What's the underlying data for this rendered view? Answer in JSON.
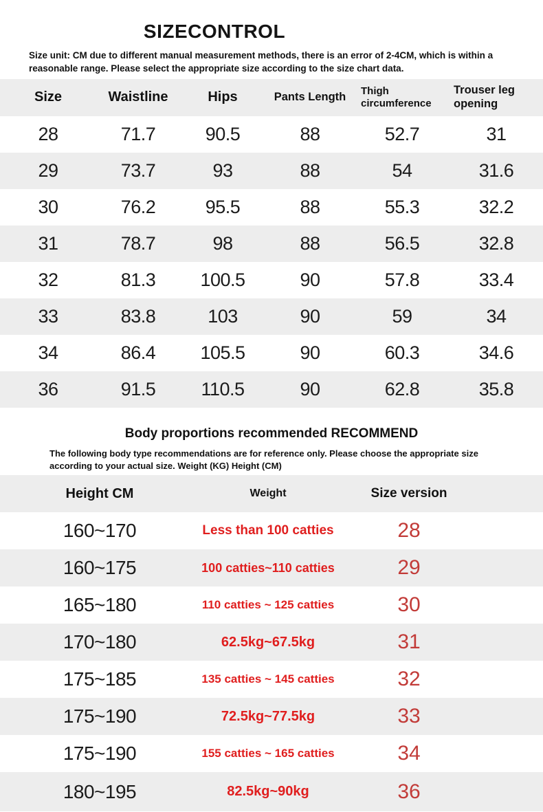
{
  "header": {
    "title": "SIZECONTROL",
    "note": "Size unit: CM due to different manual measurement methods, there is an error of 2-4CM, which is within a reasonable range. Please select the appropriate size according to the size chart data."
  },
  "size_table": {
    "columns": [
      "Size",
      "Waistline",
      "Hips",
      "Pants Length",
      "Thigh circumference",
      "Trouser leg opening"
    ],
    "rows": [
      [
        "28",
        "71.7",
        "90.5",
        "88",
        "52.7",
        "31"
      ],
      [
        "29",
        "73.7",
        "93",
        "88",
        "54",
        "31.6"
      ],
      [
        "30",
        "76.2",
        "95.5",
        "88",
        "55.3",
        "32.2"
      ],
      [
        "31",
        "78.7",
        "98",
        "88",
        "56.5",
        "32.8"
      ],
      [
        "32",
        "81.3",
        "100.5",
        "90",
        "57.8",
        "33.4"
      ],
      [
        "33",
        "83.8",
        "103",
        "90",
        "59",
        "34"
      ],
      [
        "34",
        "86.4",
        "105.5",
        "90",
        "60.3",
        "34.6"
      ],
      [
        "36",
        "91.5",
        "110.5",
        "90",
        "62.8",
        "35.8"
      ]
    ]
  },
  "recommend": {
    "title": "Body proportions recommended RECOMMEND",
    "note": "The following body type recommendations are for reference only. Please choose the appropriate size according to your actual size. Weight (KG) Height (CM)",
    "columns": [
      "Height CM",
      "Weight",
      "Size version"
    ],
    "rows": [
      {
        "height": "160~170",
        "weight": "Less than 100 catties",
        "size": "28"
      },
      {
        "height": "160~175",
        "weight": "100 catties~110 catties",
        "size": "29"
      },
      {
        "height": "165~180",
        "weight": "110 catties ~ 125 catties",
        "size": "30"
      },
      {
        "height": "170~180",
        "weight": "62.5kg~67.5kg",
        "size": "31"
      },
      {
        "height": "175~185",
        "weight": "135 catties ~ 145 catties",
        "size": "32"
      },
      {
        "height": "175~190",
        "weight": "72.5kg~77.5kg",
        "size": "33"
      },
      {
        "height": "175~190",
        "weight": "155 catties ~ 165 catties",
        "size": "34"
      },
      {
        "height": "180~195",
        "weight": "82.5kg~90kg",
        "size": "36"
      }
    ]
  },
  "colors": {
    "band-gray": "#ededed",
    "weight-red": "#e01e1e",
    "size-red": "#c23b38",
    "text-dark": "#161616"
  }
}
